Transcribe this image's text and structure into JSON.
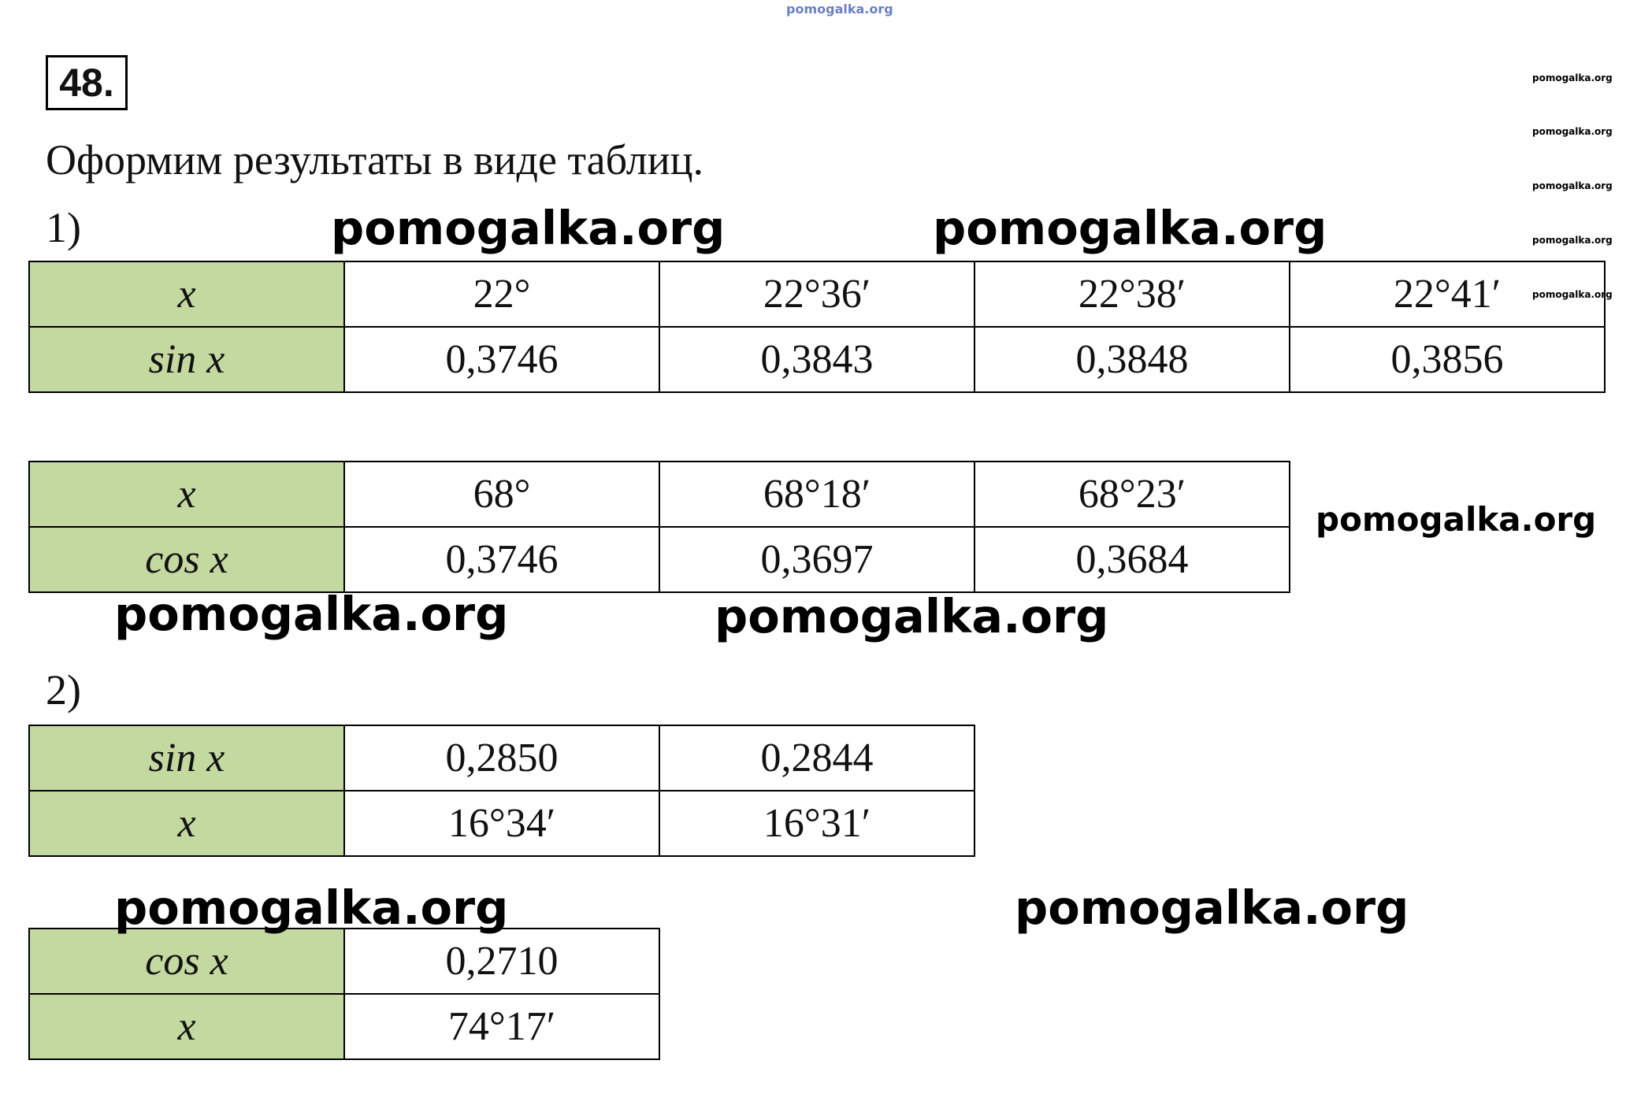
{
  "problem": {
    "number": "48.",
    "intro": "Оформим результаты в виде таблиц."
  },
  "sections": [
    {
      "label": "1)",
      "tables": [
        {
          "rows": [
            [
              "x",
              "22°",
              "22°36′",
              "22°38′",
              "22°41′"
            ],
            [
              "sin x",
              "0,3746",
              "0,3843",
              "0,3848",
              "0,3856"
            ]
          ]
        },
        {
          "rows": [
            [
              "x",
              "68°",
              "68°18′",
              "68°23′"
            ],
            [
              "cos x",
              "0,3746",
              "0,3697",
              "0,3684"
            ]
          ]
        }
      ]
    },
    {
      "label": "2)",
      "tables": [
        {
          "rows": [
            [
              "sin x",
              "0,2850",
              "0,2844"
            ],
            [
              "x",
              "16°34′",
              "16°31′"
            ]
          ]
        },
        {
          "rows": [
            [
              "cos x",
              "0,2710"
            ],
            [
              "x",
              "74°17′"
            ]
          ]
        }
      ]
    }
  ],
  "watermarks": [
    "pomogalka.org",
    "pomogalka.org",
    "pomogalka.org",
    "pomogalka.org",
    "pomogalka.org",
    "pomogalka.org",
    "pomogalka.org",
    "pomogalka.org",
    "pomogalka.org",
    "pomogalka.org",
    "pomogalka.org",
    "pomogalka.org",
    "pomogalka.org"
  ]
}
